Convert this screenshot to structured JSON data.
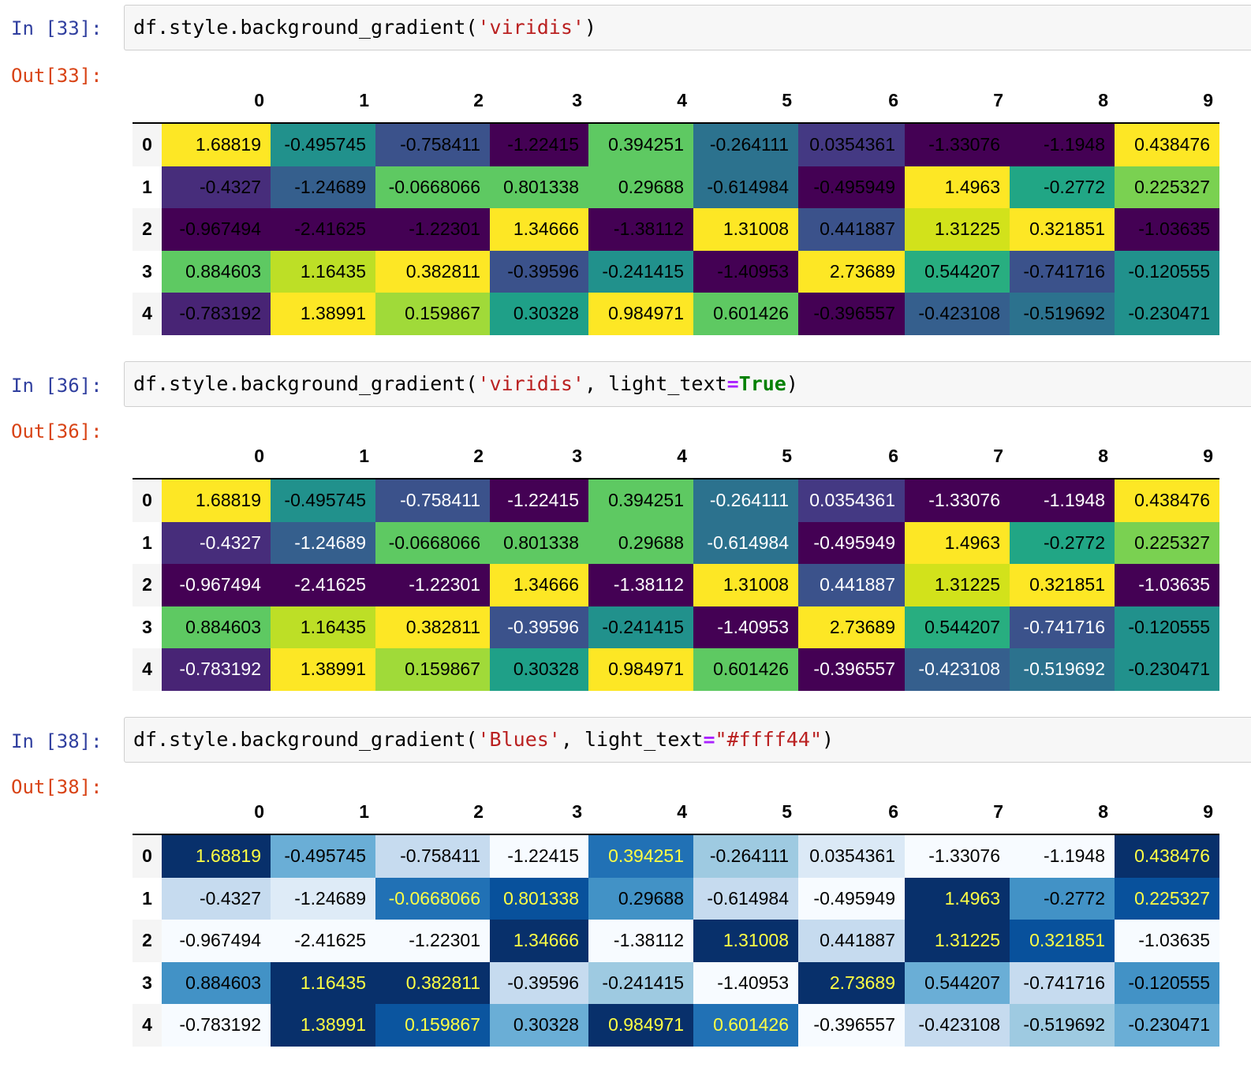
{
  "columns": [
    "0",
    "1",
    "2",
    "3",
    "4",
    "5",
    "6",
    "7",
    "8",
    "9"
  ],
  "index": [
    "0",
    "1",
    "2",
    "3",
    "4"
  ],
  "values": [
    [
      "1.68819",
      "-0.495745",
      "-0.758411",
      "-1.22415",
      "0.394251",
      "-0.264111",
      "0.0354361",
      "-1.33076",
      "-1.1948",
      "0.438476"
    ],
    [
      "-0.4327",
      "-1.24689",
      "-0.0668066",
      "0.801338",
      "0.29688",
      "-0.614984",
      "-0.495949",
      "1.4963",
      "-0.2772",
      "0.225327"
    ],
    [
      "-0.967494",
      "-2.41625",
      "-1.22301",
      "1.34666",
      "-1.38112",
      "1.31008",
      "0.441887",
      "1.31225",
      "0.321851",
      "-1.03635"
    ],
    [
      "0.884603",
      "1.16435",
      "0.382811",
      "-0.39596",
      "-0.241415",
      "-1.40953",
      "2.73689",
      "0.544207",
      "-0.741716",
      "-0.120555"
    ],
    [
      "-0.783192",
      "1.38991",
      "0.159867",
      "0.30328",
      "0.984971",
      "0.601426",
      "-0.396557",
      "-0.423108",
      "-0.519692",
      "-0.230471"
    ]
  ],
  "cells": [
    {
      "in_prompt": "In [33]:",
      "out_prompt": "Out[33]:",
      "code": {
        "prefix": "df.style.background_gradient(",
        "arg1": "'viridis'",
        "mid": "",
        "kw": "",
        "eq": "",
        "val": "",
        "suffix": ")"
      },
      "cmap": "viridis",
      "light_text": null,
      "colors": [
        [
          "#fde725",
          "#21918c",
          "#3b528b",
          "#440154",
          "#5ec962",
          "#2c728e",
          "#443983",
          "#440154",
          "#440154",
          "#fde725"
        ],
        [
          "#472d7b",
          "#355f8d",
          "#5ec962",
          "#5ec962",
          "#5ec962",
          "#2c728e",
          "#440154",
          "#fde725",
          "#21a685",
          "#7ad151"
        ],
        [
          "#440154",
          "#440154",
          "#440154",
          "#fde725",
          "#440154",
          "#fde725",
          "#3b528b",
          "#d2e21b",
          "#fde725",
          "#440154"
        ],
        [
          "#5ec962",
          "#bddf26",
          "#fde725",
          "#3b528b",
          "#21918c",
          "#440154",
          "#fde725",
          "#28ae80",
          "#3b528b",
          "#21918c"
        ],
        [
          "#482475",
          "#fde725",
          "#a0da39",
          "#1fa088",
          "#fde725",
          "#5ec962",
          "#440154",
          "#355f8d",
          "#2c728e",
          "#21918c"
        ]
      ]
    },
    {
      "in_prompt": "In [36]:",
      "out_prompt": "Out[36]:",
      "code": {
        "prefix": "df.style.background_gradient(",
        "arg1": "'viridis'",
        "mid": ", light_text",
        "kw": "True",
        "eq": "=",
        "val": "",
        "suffix": ")"
      },
      "cmap": "viridis",
      "light_text": "#ffffff",
      "colors": [
        [
          "#fde725",
          "#21918c",
          "#3b528b",
          "#440154",
          "#5ec962",
          "#2c728e",
          "#443983",
          "#440154",
          "#440154",
          "#fde725"
        ],
        [
          "#472d7b",
          "#355f8d",
          "#5ec962",
          "#5ec962",
          "#5ec962",
          "#2c728e",
          "#440154",
          "#fde725",
          "#21a685",
          "#7ad151"
        ],
        [
          "#440154",
          "#440154",
          "#440154",
          "#fde725",
          "#440154",
          "#fde725",
          "#3b528b",
          "#d2e21b",
          "#fde725",
          "#440154"
        ],
        [
          "#5ec962",
          "#bddf26",
          "#fde725",
          "#3b528b",
          "#21918c",
          "#440154",
          "#fde725",
          "#28ae80",
          "#3b528b",
          "#21918c"
        ],
        [
          "#482475",
          "#fde725",
          "#a0da39",
          "#1fa088",
          "#fde725",
          "#5ec962",
          "#440154",
          "#355f8d",
          "#2c728e",
          "#21918c"
        ]
      ]
    },
    {
      "in_prompt": "In [38]:",
      "out_prompt": "Out[38]:",
      "code": {
        "prefix": "df.style.background_gradient(",
        "arg1": "'Blues'",
        "mid": ", light_text",
        "kw": "",
        "eq": "=",
        "val": "\"#ffff44\"",
        "suffix": ")"
      },
      "cmap": "Blues",
      "light_text": "#ffff44",
      "colors": [
        [
          "#08306b",
          "#6aaed6",
          "#c6dbef",
          "#f7fbff",
          "#2171b5",
          "#9ecae1",
          "#dbe9f6",
          "#f7fbff",
          "#f7fbff",
          "#08306b"
        ],
        [
          "#c6dbef",
          "#deebf7",
          "#2171b5",
          "#08519c",
          "#4292c6",
          "#c6dbef",
          "#f7fbff",
          "#08306b",
          "#4292c6",
          "#08519c"
        ],
        [
          "#f7fbff",
          "#f7fbff",
          "#f7fbff",
          "#08306b",
          "#f7fbff",
          "#08306b",
          "#c6dbef",
          "#08306b",
          "#08519c",
          "#f7fbff"
        ],
        [
          "#4292c6",
          "#08306b",
          "#08306b",
          "#c6dbef",
          "#9ecae1",
          "#f7fbff",
          "#08306b",
          "#6aaed6",
          "#c6dbef",
          "#4292c6"
        ],
        [
          "#f7fbff",
          "#08306b",
          "#0b559f",
          "#6aaed6",
          "#08306b",
          "#2171b5",
          "#f7fbff",
          "#c6dbef",
          "#9ecae1",
          "#6aaed6"
        ]
      ]
    }
  ]
}
